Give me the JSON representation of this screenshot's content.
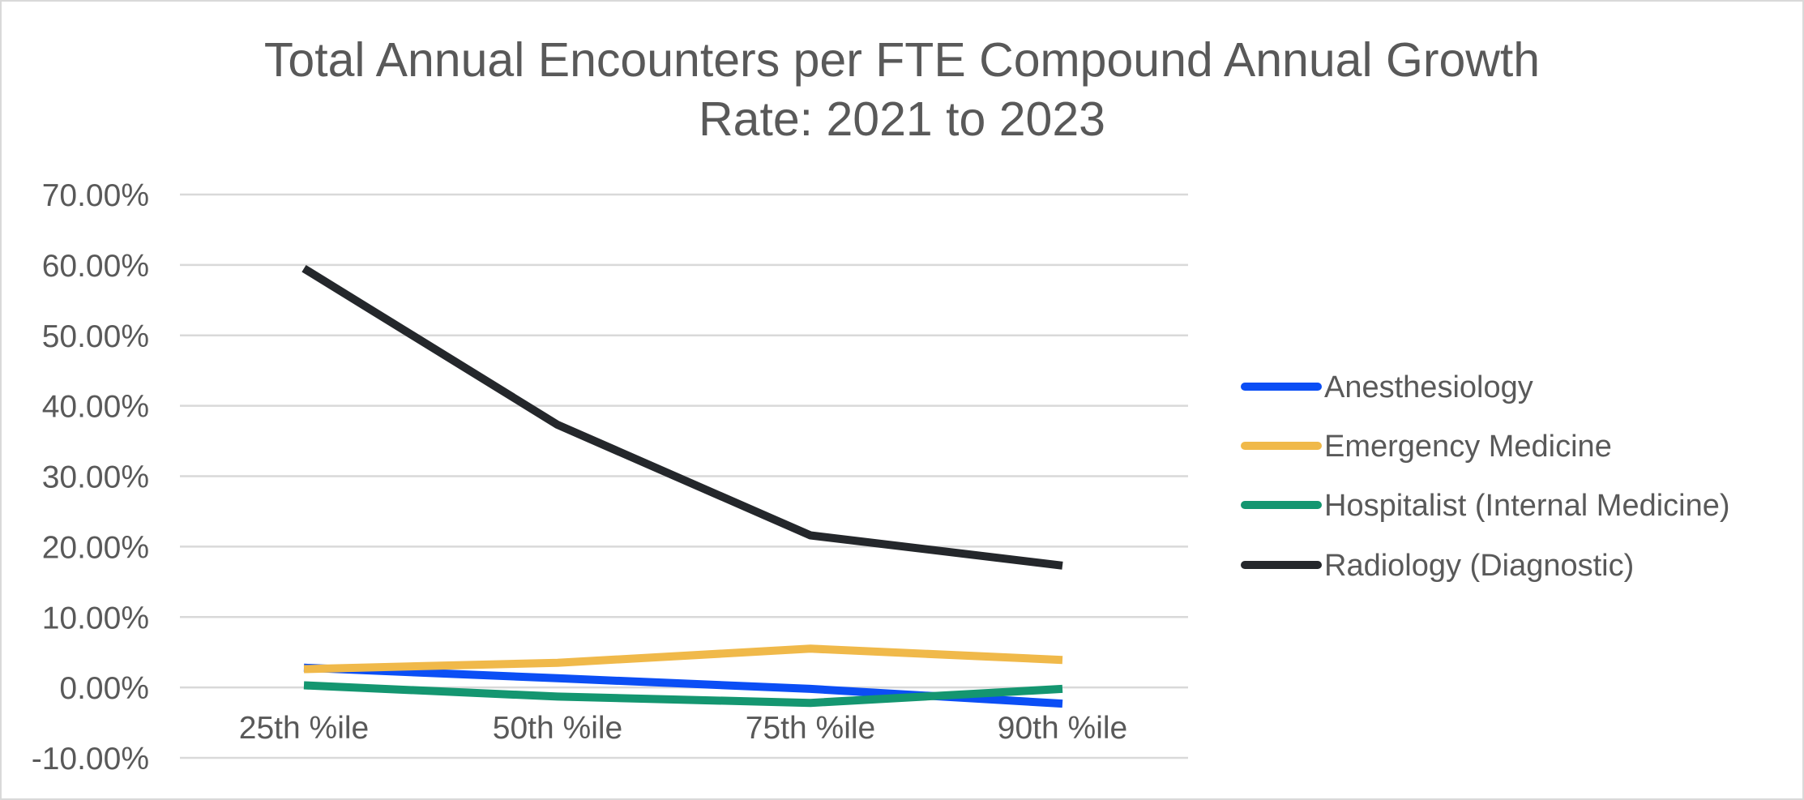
{
  "chart_data": {
    "type": "line",
    "title": "Total Annual Encounters per FTE Compound Annual Growth Rate: 2021 to 2023",
    "title_lines": [
      "Total Annual Encounters per FTE Compound Annual Growth",
      "Rate: 2021 to 2023"
    ],
    "xlabel": "",
    "ylabel": "",
    "categories": [
      "25th %ile",
      "50th %ile",
      "75th %ile",
      "90th %ile"
    ],
    "y_ticks": [
      "70.00%",
      "60.00%",
      "50.00%",
      "40.00%",
      "30.00%",
      "20.00%",
      "10.00%",
      "0.00%",
      "-10.00%"
    ],
    "ylim": [
      -10,
      70
    ],
    "y_unit": "%",
    "grid": true,
    "legend_position": "right",
    "series": [
      {
        "name": "Anesthesiology",
        "color": "#0b4ef5",
        "values": [
          2.8,
          1.3,
          -0.2,
          -2.3
        ]
      },
      {
        "name": "Emergency Medicine",
        "color": "#f0b94a",
        "values": [
          2.6,
          3.5,
          5.5,
          3.9
        ]
      },
      {
        "name": "Hospitalist (Internal Medicine)",
        "color": "#149670",
        "values": [
          0.3,
          -1.3,
          -2.2,
          -0.2
        ]
      },
      {
        "name": "Radiology (Diagnostic)",
        "color": "#24272b",
        "values": [
          59.5,
          37.3,
          21.6,
          17.3
        ]
      }
    ]
  }
}
